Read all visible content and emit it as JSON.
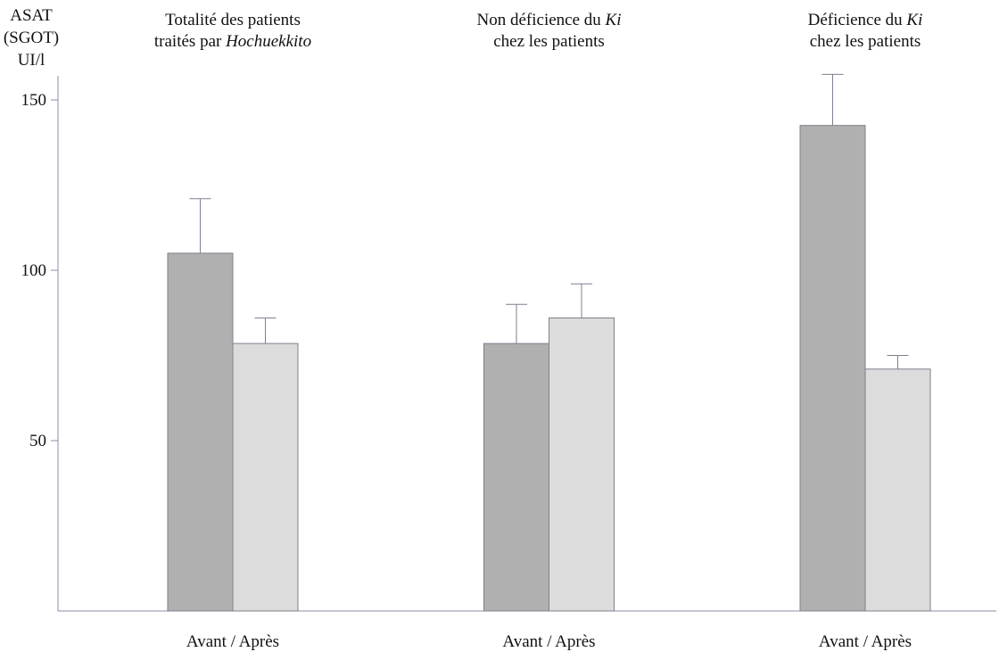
{
  "chart_data": {
    "type": "bar",
    "ylabel": [
      "ASAT",
      "(SGOT)",
      "UI/l"
    ],
    "ylim": [
      0,
      150
    ],
    "yticks": [
      50,
      100,
      150
    ],
    "grid": false,
    "colors": {
      "before": "#b0b0b0",
      "after": "#dcdcdc",
      "axis": "#8c8ca8",
      "edge": "#7f7f8f"
    },
    "groups": [
      {
        "title": [
          [
            {
              "text": "Totalité des patients",
              "italic": false
            }
          ],
          [
            {
              "text": "traités par ",
              "italic": false
            },
            {
              "text": "Hochuekkito",
              "italic": true
            }
          ]
        ],
        "xlabel": "Avant / Après",
        "bars": [
          {
            "value": 105,
            "error": 16
          },
          {
            "value": 78.5,
            "error": 7.5
          }
        ]
      },
      {
        "title": [
          [
            {
              "text": "Non déficience du ",
              "italic": false
            },
            {
              "text": "Ki",
              "italic": true
            }
          ],
          [
            {
              "text": "chez les patients",
              "italic": false
            }
          ]
        ],
        "xlabel": "Avant / Après",
        "bars": [
          {
            "value": 78.5,
            "error": 11.5
          },
          {
            "value": 86,
            "error": 10
          }
        ]
      },
      {
        "title": [
          [
            {
              "text": "Déficience du ",
              "italic": false
            },
            {
              "text": "Ki",
              "italic": true
            }
          ],
          [
            {
              "text": "chez les patients",
              "italic": false
            }
          ]
        ],
        "xlabel": "Avant / Après",
        "bars": [
          {
            "value": 142.5,
            "error": 15
          },
          {
            "value": 71,
            "error": 4
          }
        ]
      }
    ]
  }
}
